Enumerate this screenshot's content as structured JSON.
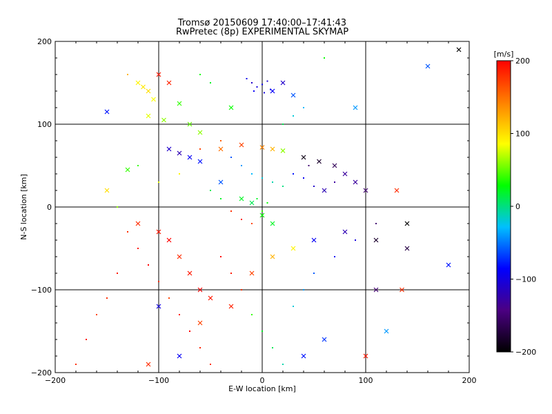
{
  "chart_data": {
    "type": "scatter",
    "title": "Tromsø 20150609 17:40:00–17:41:43",
    "subtitle": "RwPretec (8p) EXPERIMENTAL SKYMAP",
    "xlabel": "E-W location [km]",
    "ylabel": "N-S location [km]",
    "xlim": [
      -200,
      200
    ],
    "ylim": [
      -200,
      200
    ],
    "xticks": [
      -200,
      -100,
      0,
      100,
      200
    ],
    "yticks": [
      -200,
      -100,
      0,
      100,
      200
    ],
    "xtick_labels": [
      "−200",
      "−100",
      "0",
      "100",
      "200"
    ],
    "ytick_labels": [
      "−200",
      "−100",
      "0",
      "100",
      "200"
    ],
    "grid": true,
    "colorbar": {
      "label": "[m/s]",
      "range": [
        -200,
        200
      ],
      "ticks": [
        200,
        100,
        0,
        -100,
        -200
      ],
      "tick_labels": [
        "200",
        "100",
        "0",
        "−100",
        "−200"
      ],
      "colormap": [
        "#000000",
        "#4b0082",
        "#0000ff",
        "#00bfff",
        "#00ff00",
        "#ffff00",
        "#ff8000",
        "#ff0000"
      ]
    },
    "series": [
      {
        "marker": "x",
        "points": [
          [
            -120,
            150,
            90
          ],
          [
            -115,
            145,
            95
          ],
          [
            -110,
            140,
            100
          ],
          [
            -105,
            130,
            85
          ],
          [
            -100,
            160,
            190
          ],
          [
            -90,
            150,
            185
          ],
          [
            -80,
            125,
            40
          ],
          [
            -150,
            115,
            -80
          ],
          [
            -95,
            105,
            60
          ],
          [
            -110,
            110,
            80
          ],
          [
            -70,
            100,
            50
          ],
          [
            -60,
            90,
            60
          ],
          [
            -30,
            120,
            30
          ],
          [
            20,
            150,
            -110
          ],
          [
            10,
            140,
            -90
          ],
          [
            30,
            135,
            -60
          ],
          [
            90,
            120,
            -40
          ],
          [
            160,
            170,
            -60
          ],
          [
            190,
            190,
            -200
          ],
          [
            -90,
            70,
            -110
          ],
          [
            -80,
            65,
            -120
          ],
          [
            -70,
            60,
            -90
          ],
          [
            -60,
            55,
            -80
          ],
          [
            -40,
            70,
            150
          ],
          [
            -20,
            75,
            170
          ],
          [
            0,
            72,
            140
          ],
          [
            10,
            70,
            120
          ],
          [
            20,
            68,
            60
          ],
          [
            40,
            60,
            -190
          ],
          [
            55,
            55,
            -180
          ],
          [
            70,
            50,
            -160
          ],
          [
            80,
            40,
            -130
          ],
          [
            90,
            30,
            -130
          ],
          [
            100,
            20,
            -150
          ],
          [
            130,
            20,
            180
          ],
          [
            60,
            20,
            -120
          ],
          [
            -40,
            30,
            -60
          ],
          [
            -20,
            10,
            20
          ],
          [
            -10,
            5,
            10
          ],
          [
            0,
            -10,
            30
          ],
          [
            10,
            -20,
            20
          ],
          [
            -120,
            -20,
            180
          ],
          [
            -100,
            -30,
            190
          ],
          [
            -90,
            -40,
            200
          ],
          [
            -80,
            -60,
            180
          ],
          [
            -70,
            -80,
            190
          ],
          [
            -60,
            -100,
            200
          ],
          [
            -50,
            -110,
            190
          ],
          [
            -30,
            -120,
            185
          ],
          [
            -10,
            -80,
            170
          ],
          [
            10,
            -60,
            120
          ],
          [
            30,
            -50,
            90
          ],
          [
            50,
            -40,
            -90
          ],
          [
            80,
            -30,
            -120
          ],
          [
            110,
            -40,
            -180
          ],
          [
            140,
            -50,
            -170
          ],
          [
            180,
            -70,
            -80
          ],
          [
            135,
            -100,
            180
          ],
          [
            110,
            -100,
            -150
          ],
          [
            -100,
            -120,
            -100
          ],
          [
            -80,
            -180,
            -90
          ],
          [
            -110,
            -190,
            180
          ],
          [
            -60,
            -140,
            170
          ],
          [
            40,
            -180,
            -80
          ],
          [
            100,
            -180,
            190
          ],
          [
            120,
            -150,
            -40
          ],
          [
            60,
            -160,
            -70
          ],
          [
            -150,
            20,
            100
          ],
          [
            -130,
            45,
            40
          ],
          [
            140,
            -20,
            -200
          ]
        ]
      },
      {
        "marker": "dot",
        "points": [
          [
            -10,
            150,
            -110
          ],
          [
            -5,
            145,
            -100
          ],
          [
            0,
            148,
            -95
          ],
          [
            5,
            152,
            -105
          ],
          [
            -8,
            140,
            -90
          ],
          [
            2,
            138,
            -100
          ],
          [
            -15,
            155,
            -95
          ],
          [
            8,
            142,
            -90
          ],
          [
            -30,
            60,
            -60
          ],
          [
            -20,
            50,
            -40
          ],
          [
            -10,
            40,
            -30
          ],
          [
            0,
            35,
            -20
          ],
          [
            10,
            30,
            -10
          ],
          [
            20,
            25,
            0
          ],
          [
            30,
            40,
            -80
          ],
          [
            40,
            35,
            -90
          ],
          [
            50,
            25,
            -110
          ],
          [
            60,
            20,
            -120
          ],
          [
            70,
            30,
            -130
          ],
          [
            45,
            50,
            -150
          ],
          [
            -50,
            20,
            10
          ],
          [
            -40,
            10,
            20
          ],
          [
            -30,
            -5,
            180
          ],
          [
            -20,
            -15,
            190
          ],
          [
            -10,
            -20,
            170
          ],
          [
            0,
            -5,
            40
          ],
          [
            5,
            5,
            30
          ],
          [
            -5,
            10,
            20
          ],
          [
            -130,
            -30,
            180
          ],
          [
            -120,
            -50,
            190
          ],
          [
            -110,
            -70,
            200
          ],
          [
            -100,
            -90,
            180
          ],
          [
            -90,
            -110,
            170
          ],
          [
            -80,
            -130,
            190
          ],
          [
            -70,
            -150,
            200
          ],
          [
            -60,
            -170,
            185
          ],
          [
            -50,
            -190,
            180
          ],
          [
            -140,
            -80,
            190
          ],
          [
            -150,
            -110,
            180
          ],
          [
            -160,
            -130,
            170
          ],
          [
            -170,
            -160,
            190
          ],
          [
            -180,
            -190,
            180
          ],
          [
            -40,
            -60,
            200
          ],
          [
            -30,
            -80,
            190
          ],
          [
            -20,
            -100,
            180
          ],
          [
            -10,
            -130,
            40
          ],
          [
            0,
            -150,
            20
          ],
          [
            10,
            -170,
            10
          ],
          [
            20,
            -190,
            -10
          ],
          [
            30,
            -120,
            -20
          ],
          [
            40,
            -100,
            -40
          ],
          [
            50,
            -80,
            -60
          ],
          [
            70,
            -60,
            -90
          ],
          [
            90,
            -40,
            -100
          ],
          [
            110,
            -20,
            -150
          ],
          [
            -40,
            80,
            160
          ],
          [
            -60,
            70,
            170
          ],
          [
            -80,
            40,
            90
          ],
          [
            -100,
            30,
            80
          ],
          [
            -120,
            50,
            40
          ],
          [
            -140,
            0,
            60
          ],
          [
            20,
            100,
            10
          ],
          [
            30,
            110,
            -20
          ],
          [
            40,
            120,
            -30
          ],
          [
            -50,
            150,
            20
          ],
          [
            -60,
            160,
            30
          ],
          [
            -130,
            160,
            120
          ],
          [
            60,
            180,
            30
          ]
        ]
      }
    ]
  }
}
